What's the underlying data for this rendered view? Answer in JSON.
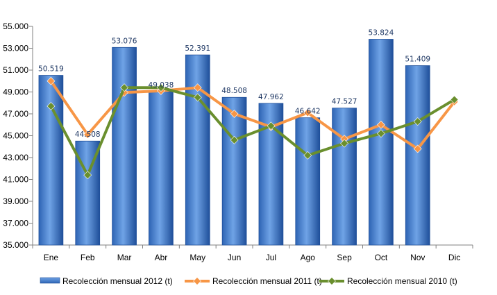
{
  "chart_data": {
    "type": "bar",
    "categories": [
      "Ene",
      "Feb",
      "Mar",
      "Abr",
      "May",
      "Jun",
      "Jul",
      "Ago",
      "Sep",
      "Oct",
      "Nov",
      "Dic"
    ],
    "ylim": [
      35000,
      55000
    ],
    "yticks": [
      35000,
      37000,
      39000,
      41000,
      43000,
      45000,
      47000,
      49000,
      51000,
      53000,
      55000
    ],
    "ytick_labels": [
      "35.000",
      "37.000",
      "39.000",
      "41.000",
      "43.000",
      "45.000",
      "47.000",
      "49.000",
      "51.000",
      "53.000",
      "55.000"
    ],
    "grid": false,
    "legend_position": "bottom",
    "series": [
      {
        "name": "Recolección mensual 2012 (t)",
        "type": "bar",
        "color": "#3F7FCF",
        "values": [
          50519,
          44508,
          53076,
          49038,
          52391,
          48508,
          47962,
          46642,
          47527,
          53824,
          51409,
          null
        ],
        "labels": [
          "50.519",
          "44.508",
          "53.076",
          "49.038",
          "52.391",
          "48.508",
          "47.962",
          "46.642",
          "47.527",
          "53.824",
          "51.409",
          ""
        ]
      },
      {
        "name": "Recolección mensual 2011 (t)",
        "type": "line",
        "color": "#F79646",
        "values": [
          50000,
          45100,
          48950,
          49100,
          49400,
          47000,
          45800,
          47100,
          44700,
          46000,
          43800,
          48100
        ]
      },
      {
        "name": "Recolección mensual 2010 (t)",
        "type": "line",
        "color": "#6A8F2E",
        "values": [
          47700,
          41400,
          49400,
          49400,
          48500,
          44600,
          45900,
          43200,
          44300,
          45200,
          46300,
          48300
        ]
      }
    ]
  }
}
